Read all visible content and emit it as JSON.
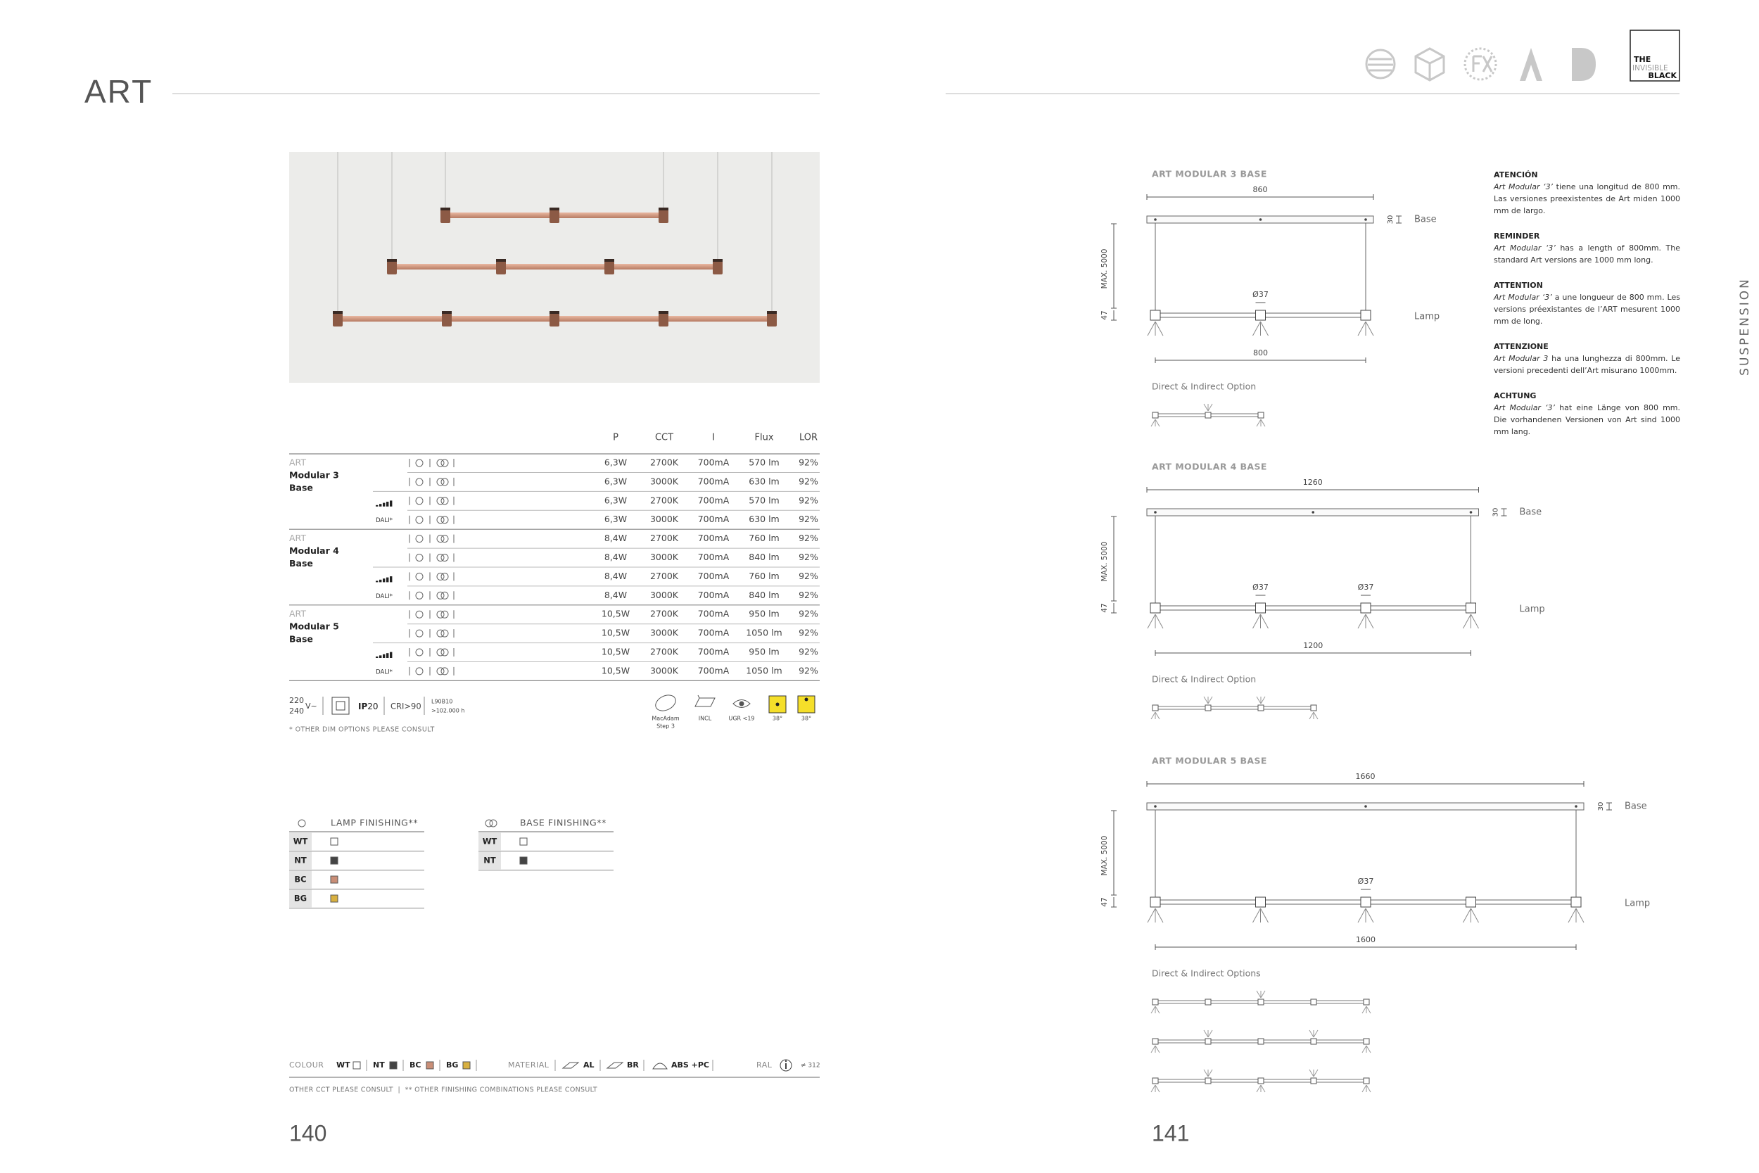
{
  "left_page": {
    "title": "ART",
    "table": {
      "headers": [
        "P",
        "CCT",
        "I",
        "Flux",
        "LOR"
      ],
      "groups": [
        {
          "name": [
            "ART",
            "Modular 3",
            "Base"
          ],
          "dim_label": "DALI*",
          "rows": [
            [
              "6,3W",
              "2700K",
              "700mA",
              "570 lm",
              "92%"
            ],
            [
              "6,3W",
              "3000K",
              "700mA",
              "630 lm",
              "92%"
            ],
            [
              "6,3W",
              "2700K",
              "700mA",
              "570 lm",
              "92%"
            ],
            [
              "6,3W",
              "3000K",
              "700mA",
              "630 lm",
              "92%"
            ]
          ]
        },
        {
          "name": [
            "ART",
            "Modular 4",
            "Base"
          ],
          "dim_label": "DALI*",
          "rows": [
            [
              "8,4W",
              "2700K",
              "700mA",
              "760 lm",
              "92%"
            ],
            [
              "8,4W",
              "3000K",
              "700mA",
              "840 lm",
              "92%"
            ],
            [
              "8,4W",
              "2700K",
              "700mA",
              "760 lm",
              "92%"
            ],
            [
              "8,4W",
              "3000K",
              "700mA",
              "840 lm",
              "92%"
            ]
          ]
        },
        {
          "name": [
            "ART",
            "Modular 5",
            "Base"
          ],
          "dim_label": "DALI*",
          "rows": [
            [
              "10,5W",
              "2700K",
              "700mA",
              "950 lm",
              "92%"
            ],
            [
              "10,5W",
              "3000K",
              "700mA",
              "1050 lm",
              "92%"
            ],
            [
              "10,5W",
              "2700K",
              "700mA",
              "950 lm",
              "92%"
            ],
            [
              "10,5W",
              "3000K",
              "700mA",
              "1050 lm",
              "92%"
            ]
          ]
        }
      ]
    },
    "specs": {
      "voltage": [
        "220",
        "240"
      ],
      "voltage_unit": "V~",
      "ip": "IP",
      "ip_value": "20",
      "cri": "CRI>90",
      "lifetime": [
        "L90B10",
        ">102.000 h"
      ],
      "macadam": [
        "MacAdam",
        "Step 3"
      ],
      "driver": "INCL",
      "ugr": "UGR <19",
      "beam_angles": [
        "38°",
        "38°"
      ]
    },
    "note": "* OTHER DIM OPTIONS PLEASE CONSULT",
    "finishing": [
      {
        "title": "LAMP FINISHING**",
        "rows": [
          {
            "code": "WT",
            "color": "#ffffff"
          },
          {
            "code": "NT",
            "color": "#444444"
          },
          {
            "code": "BC",
            "color": "#c98e77"
          },
          {
            "code": "BG",
            "color": "#d8b040"
          }
        ]
      },
      {
        "title": "BASE FINISHING**",
        "rows": [
          {
            "code": "WT",
            "color": "#ffffff"
          },
          {
            "code": "NT",
            "color": "#444444"
          }
        ]
      }
    ],
    "colour_bar": {
      "colour_label": "COLOUR",
      "colours": [
        {
          "code": "WT",
          "color": "#ffffff"
        },
        {
          "code": "NT",
          "color": "#444444"
        },
        {
          "code": "BC",
          "color": "#c98e77"
        },
        {
          "code": "BG",
          "color": "#d8b040"
        }
      ],
      "material_label": "MATERIAL",
      "materials": [
        "AL",
        "BR",
        "ABS +PC"
      ],
      "ral_label": "RAL",
      "ral_value": "≠ 312"
    },
    "footnote": "OTHER CCT PLEASE CONSULT  |  ** OTHER FINISHING COMBINATIONS PLEASE CONSULT",
    "page_number": "140"
  },
  "right_page": {
    "brand": [
      "THE",
      "INVISIBLE",
      "BLACK"
    ],
    "section_label": "SUSPENSION",
    "drawings": [
      {
        "title": "ART MODULAR 3 BASE",
        "total_width": "860",
        "base_height": "30",
        "base_label": "Base",
        "cable_length": "MAX. 5000",
        "diameters": [
          "Ø37"
        ],
        "lamp_height": "47",
        "lamp_label": "Lamp",
        "lamp_span": "800",
        "option_title": "Direct & Indirect Option"
      },
      {
        "title": "ART MODULAR 4 BASE",
        "total_width": "1260",
        "base_height": "30",
        "base_label": "Base",
        "cable_length": "MAX. 5000",
        "diameters": [
          "Ø37",
          "Ø37"
        ],
        "lamp_height": "47",
        "lamp_label": "Lamp",
        "lamp_span": "1200",
        "option_title": "Direct & Indirect Option"
      },
      {
        "title": "ART MODULAR 5 BASE",
        "total_width": "1660",
        "base_height": "30",
        "base_label": "Base",
        "cable_length": "MAX. 5000",
        "diameters": [
          "Ø37"
        ],
        "lamp_height": "47",
        "lamp_label": "Lamp",
        "lamp_span": "1600",
        "option_title": "Direct & Indirect Options"
      }
    ],
    "notes": [
      {
        "heading": "ATENCIÓN",
        "product": "Art Modular ‘3’",
        "text": " tiene una longitud de 800 mm. Las versiones preexistentes de Art miden 1000 mm de largo."
      },
      {
        "heading": "REMINDER",
        "product": "Art Modular ‘3’",
        "text": " has a length of 800mm. The standard Art versions are 1000 mm long."
      },
      {
        "heading": "ATTENTION",
        "product": "Art Modular ‘3’",
        "text": " a une longueur de 800 mm. Les versions préexistantes de l’ART mesurent 1000 mm de long."
      },
      {
        "heading": "ATTENZIONE",
        "product": "Art Modular 3",
        "text": " ha una lunghezza di 800mm. Le versioni precedenti dell’Art misurano 1000mm."
      },
      {
        "heading": "ACHTUNG",
        "product": "Art Modular ‘3’",
        "text": " hat eine Länge von 800 mm. Die vorhandenen Versionen von Art sind 1000 mm lang."
      }
    ],
    "page_number": "141"
  }
}
